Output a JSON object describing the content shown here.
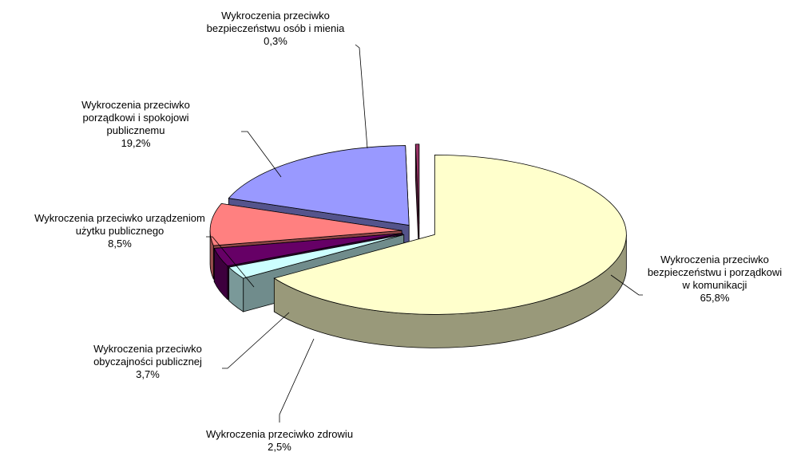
{
  "chart_data": {
    "type": "pie3d",
    "categories": [
      "Wykroczenia przeciwko bezpieczeństwu i porządkowi w komunikacji",
      "Wykroczenia przeciwko zdrowiu",
      "Wykroczenia przeciwko obyczajności publicznej",
      "Wykroczenia przeciwko urządzeniom użytku publicznego",
      "Wykroczenia przeciwko porządkowi i spokojowi publicznemu",
      "Wykroczenia przeciwko bezpieczeństwu osób i mienia"
    ],
    "values": [
      65.8,
      2.5,
      3.7,
      8.5,
      19.2,
      0.3
    ],
    "value_labels": [
      "65,8%",
      "2,5%",
      "3,7%",
      "8,5%",
      "19,2%",
      "0,3%"
    ],
    "colors": [
      "#FFFFCC",
      "#CCFFFF",
      "#660066",
      "#FF8080",
      "#9999FF",
      "#993366"
    ]
  }
}
